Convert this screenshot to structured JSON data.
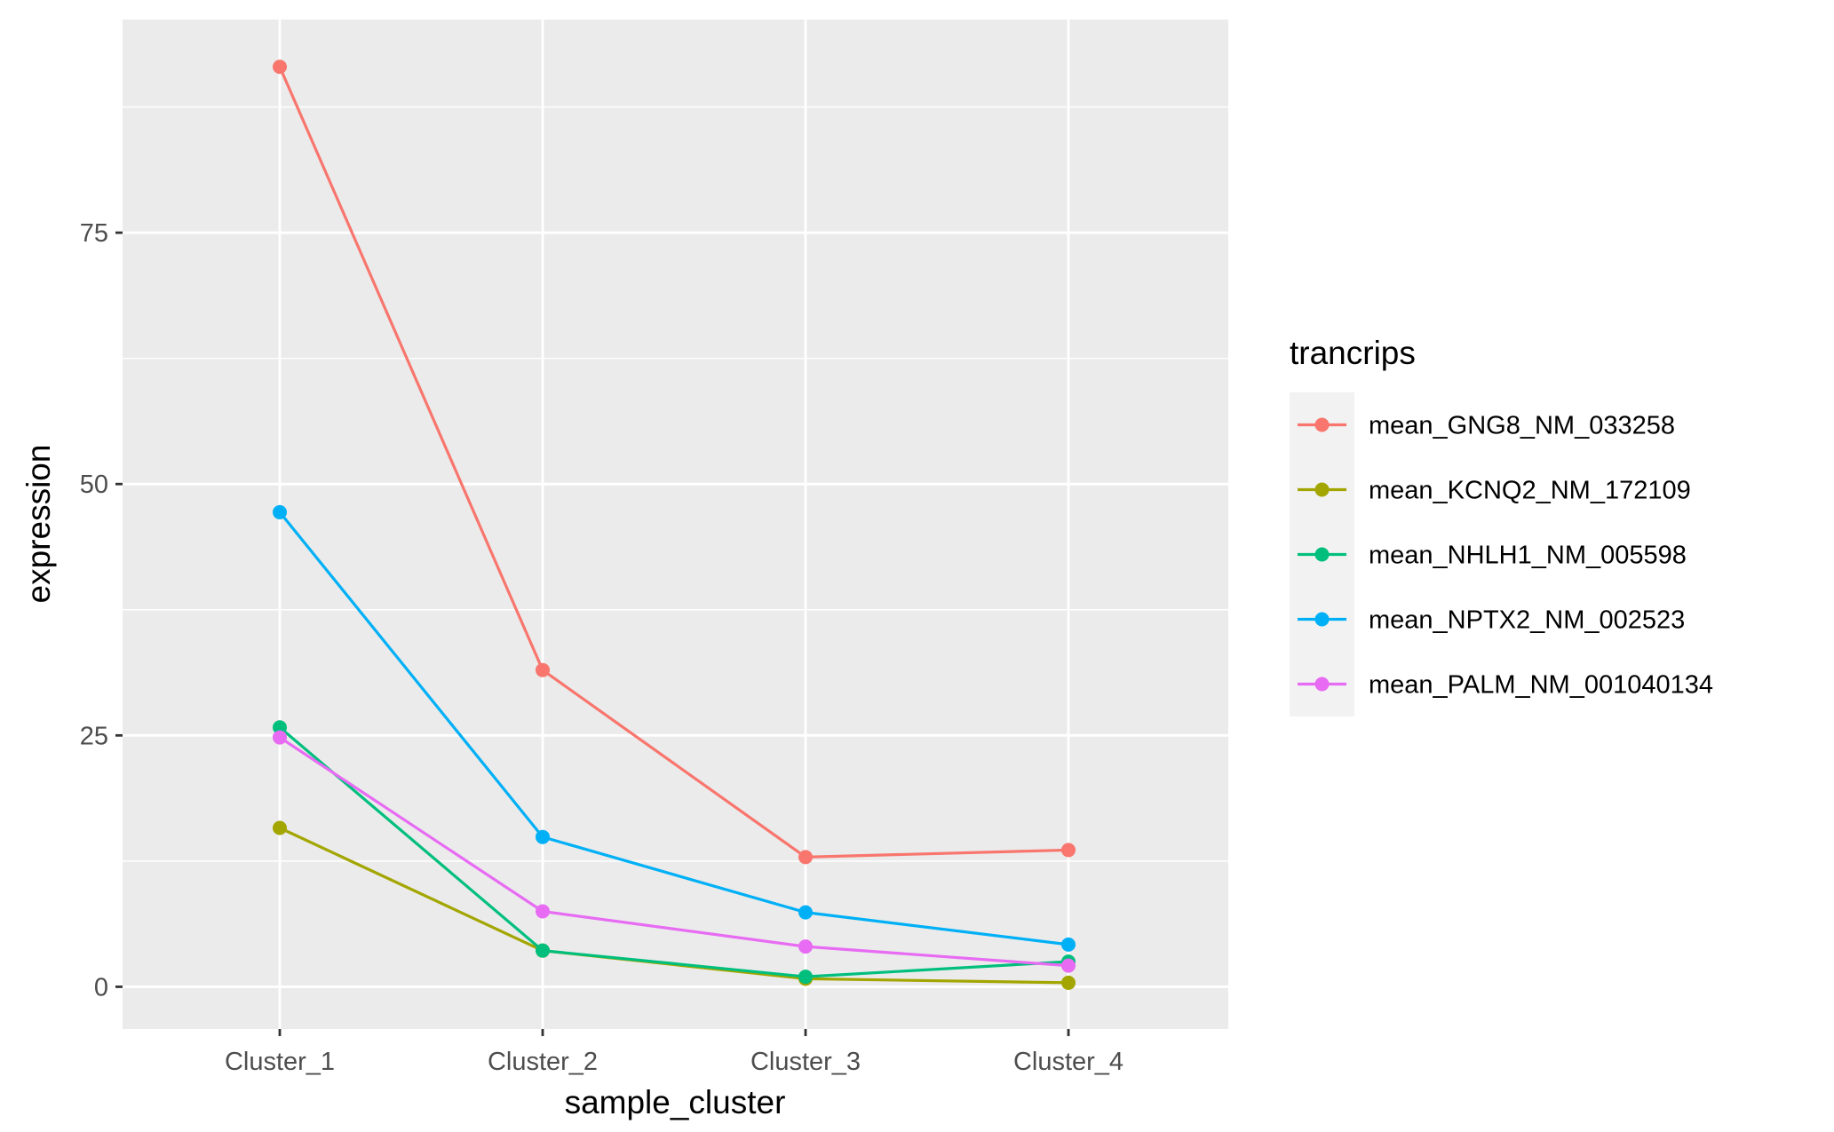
{
  "chart_data": {
    "type": "line",
    "xlabel": "sample_cluster",
    "ylabel": "expression",
    "categories": [
      "Cluster_1",
      "Cluster_2",
      "Cluster_3",
      "Cluster_4"
    ],
    "ylim": [
      -4.2,
      96.2
    ],
    "yticks": [
      0,
      25,
      50,
      75
    ],
    "y_minor_ticks": [
      12.5,
      37.5,
      62.5,
      87.5
    ],
    "grid": true,
    "legend": {
      "title": "trancrips",
      "position": "right"
    },
    "series": [
      {
        "name": "mean_GNG8_NM_033258",
        "color": "#F8766D",
        "values": [
          91.5,
          31.5,
          12.9,
          13.6
        ]
      },
      {
        "name": "mean_KCNQ2_NM_172109",
        "color": "#A3A500",
        "values": [
          15.8,
          3.6,
          0.8,
          0.4
        ]
      },
      {
        "name": "mean_NHLH1_NM_005598",
        "color": "#00BF7D",
        "values": [
          25.8,
          3.6,
          1.0,
          2.5
        ]
      },
      {
        "name": "mean_NPTX2_NM_002523",
        "color": "#00B0F6",
        "values": [
          47.2,
          14.9,
          7.4,
          4.2
        ]
      },
      {
        "name": "mean_PALM_NM_001040134",
        "color": "#E76BF3",
        "values": [
          24.8,
          7.5,
          4.0,
          2.1
        ]
      }
    ],
    "colors": {
      "panel_background": "#EBEBEB",
      "gridline": "#FFFFFF",
      "tick_text": "#4D4D4D",
      "legend_key_background": "#F2F2F2"
    }
  }
}
